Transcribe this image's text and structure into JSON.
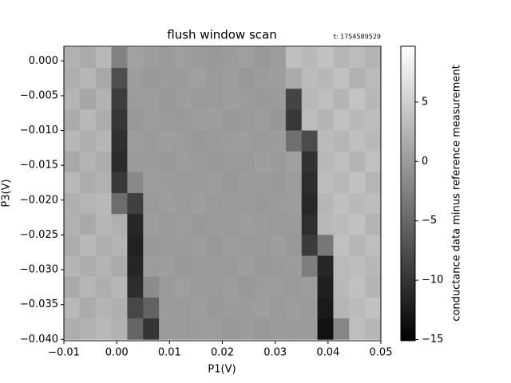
{
  "chart_data": {
    "type": "heatmap",
    "title": "flush window scan",
    "annotation": "t: 1754589529",
    "xlabel": "P1(V)",
    "ylabel": "P3(V)",
    "colorbar_label": "conductance data minus reference measurement",
    "colormap": [
      "#000000",
      "#ffffff"
    ],
    "xlim": [
      -0.01,
      0.05
    ],
    "ylim": [
      -0.0402,
      0.0021
    ],
    "clim": [
      -15.1,
      9.7
    ],
    "xticks": [
      {
        "value": -0.01,
        "label": "−0.01"
      },
      {
        "value": 0,
        "label": "0.00"
      },
      {
        "value": 0.01,
        "label": "0.01"
      },
      {
        "value": 0.02,
        "label": "0.02"
      },
      {
        "value": 0.03,
        "label": "0.03"
      },
      {
        "value": 0.04,
        "label": "0.04"
      },
      {
        "value": 0.05,
        "label": "0.05"
      }
    ],
    "yticks": [
      {
        "value": 0,
        "label": "0.000"
      },
      {
        "value": -0.005,
        "label": "−0.005"
      },
      {
        "value": -0.01,
        "label": "−0.010"
      },
      {
        "value": -0.015,
        "label": "−0.015"
      },
      {
        "value": -0.02,
        "label": "−0.020"
      },
      {
        "value": -0.025,
        "label": "−0.025"
      },
      {
        "value": -0.03,
        "label": "−0.030"
      },
      {
        "value": -0.035,
        "label": "−0.035"
      },
      {
        "value": -0.04,
        "label": "−0.040"
      }
    ],
    "cticks": [
      5,
      0,
      {
        "value": -5,
        "label": "−5"
      },
      {
        "value": -10,
        "label": "−10"
      },
      {
        "value": -15,
        "label": "−15"
      }
    ],
    "x": [
      -0.0085,
      -0.0055,
      -0.0025,
      0.0005,
      0.0035,
      0.0065,
      0.0095,
      0.0125,
      0.0155,
      0.0185,
      0.0215,
      0.0245,
      0.0275,
      0.0305,
      0.0335,
      0.0365,
      0.0395,
      0.0425,
      0.0455,
      0.0485
    ],
    "y": [
      0.0005,
      -0.0025,
      -0.0055,
      -0.0085,
      -0.0115,
      -0.0145,
      -0.0175,
      -0.0205,
      -0.0235,
      -0.0265,
      -0.0295,
      -0.0325,
      -0.0355,
      -0.0385
    ],
    "values": [
      [
        2.1,
        1.4,
        2.8,
        -2.5,
        0.6,
        0.2,
        -0.1,
        0.3,
        0.0,
        -0.2,
        0.1,
        0.4,
        -0.3,
        0.2,
        3.5,
        2.9,
        3.8,
        2.6,
        3.2,
        2.4
      ],
      [
        1.8,
        2.6,
        1.2,
        -7.5,
        0.3,
        -0.2,
        0.1,
        0.0,
        0.4,
        -0.1,
        0.2,
        -0.3,
        0.1,
        0.3,
        1.5,
        3.1,
        2.7,
        3.6,
        2.2,
        3.0
      ],
      [
        2.4,
        1.1,
        2.2,
        -9.2,
        0.1,
        0.3,
        -0.2,
        0.2,
        -0.1,
        0.0,
        0.3,
        0.1,
        -0.2,
        0.0,
        -8.5,
        2.8,
        3.4,
        2.5,
        3.9,
        2.7
      ],
      [
        1.5,
        2.9,
        1.7,
        -9.8,
        -0.3,
        0.2,
        0.0,
        -0.1,
        0.2,
        0.3,
        -0.2,
        0.0,
        0.2,
        -0.4,
        -9.6,
        3.2,
        2.4,
        3.7,
        2.9,
        3.3
      ],
      [
        2.7,
        1.9,
        2.5,
        -10.4,
        0.2,
        -0.1,
        0.3,
        0.1,
        -0.3,
        0.0,
        0.1,
        0.2,
        -0.1,
        0.1,
        -4.2,
        -7.8,
        3.1,
        2.6,
        3.5,
        2.8
      ],
      [
        1.2,
        2.3,
        1.6,
        -10.9,
        0.0,
        0.1,
        -0.2,
        0.2,
        0.1,
        -0.2,
        0.0,
        -0.1,
        0.3,
        0.0,
        0.4,
        -10.2,
        2.9,
        3.4,
        2.4,
        3.6
      ],
      [
        2.9,
        1.6,
        2.1,
        -9.6,
        -1.8,
        0.2,
        0.1,
        -0.1,
        0.0,
        0.2,
        -0.3,
        0.1,
        0.0,
        -0.2,
        0.2,
        -10.8,
        3.3,
        2.7,
        3.8,
        2.5
      ],
      [
        1.9,
        2.5,
        2.8,
        -4.5,
        -8.9,
        -0.1,
        0.2,
        0.0,
        0.3,
        -0.1,
        0.1,
        0.0,
        -0.2,
        0.1,
        0.3,
        -11.2,
        2.6,
        3.5,
        2.9,
        3.2
      ],
      [
        2.2,
        1.3,
        2.6,
        2.0,
        -11.3,
        0.3,
        -0.1,
        0.2,
        -0.2,
        0.1,
        0.0,
        0.2,
        0.1,
        -0.1,
        0.0,
        -10.6,
        2.8,
        3.1,
        3.7,
        2.3
      ],
      [
        1.6,
        2.8,
        1.9,
        2.4,
        -11.8,
        -0.2,
        0.0,
        0.1,
        0.2,
        -0.3,
        0.2,
        -0.1,
        0.0,
        0.3,
        -0.2,
        -9.4,
        -3.5,
        3.6,
        2.5,
        3.4
      ],
      [
        2.5,
        1.7,
        2.3,
        1.4,
        -11.5,
        0.1,
        0.2,
        -0.2,
        0.0,
        0.1,
        -0.1,
        0.3,
        -0.2,
        0.0,
        0.1,
        -2.8,
        -11.4,
        3.0,
        3.3,
        2.7
      ],
      [
        1.3,
        2.6,
        1.8,
        2.7,
        -10.7,
        -1.5,
        -0.1,
        0.3,
        -0.1,
        0.0,
        0.2,
        -0.2,
        0.1,
        0.2,
        -0.1,
        0.2,
        -12.1,
        2.9,
        3.6,
        2.4
      ],
      [
        2.8,
        1.5,
        2.4,
        1.9,
        -8.2,
        -5.6,
        0.1,
        0.0,
        0.2,
        -0.2,
        0.1,
        0.0,
        0.3,
        -0.1,
        0.2,
        0.0,
        -12.6,
        2.5,
        3.1,
        3.8
      ],
      [
        1.7,
        2.2,
        2.9,
        2.1,
        -5.3,
        -9.9,
        0.0,
        -0.1,
        0.1,
        0.2,
        -0.2,
        0.1,
        -0.3,
        0.0,
        -0.1,
        0.1,
        -13.4,
        -2.1,
        3.4,
        2.6
      ]
    ]
  }
}
